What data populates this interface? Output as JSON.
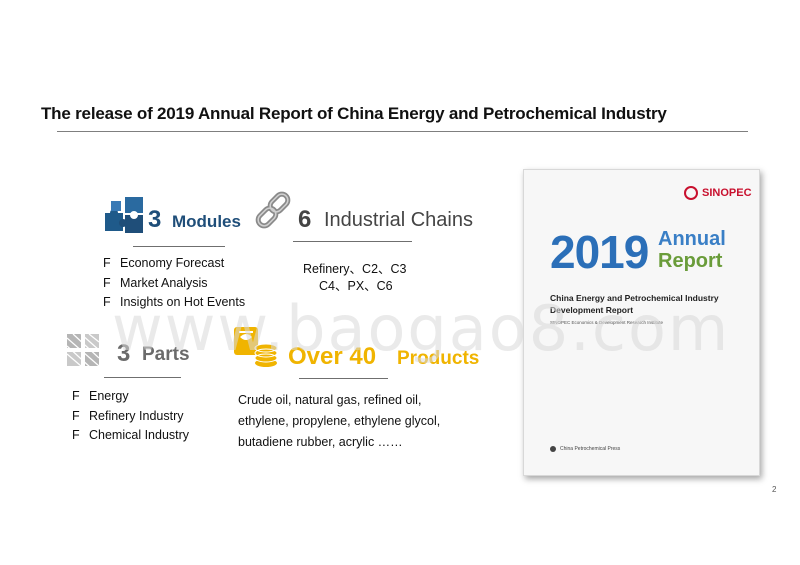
{
  "title": "The release of 2019 Annual Report of China Energy and Petrochemical Industry",
  "modules": {
    "number": "3",
    "label": "Modules",
    "items": [
      "Economy Forecast",
      "Market Analysis",
      "Insights on Hot Events"
    ],
    "bullet": "F",
    "color": "#1f4e79"
  },
  "chains": {
    "number": "6",
    "label": "Industrial Chains",
    "line1": "Refinery、C2、C3",
    "line2": "C4、PX、C6",
    "color": "#444444"
  },
  "parts": {
    "number": "3",
    "label": "Parts",
    "items": [
      "Energy",
      "Refinery Industry",
      "Chemical Industry"
    ],
    "bullet": "F",
    "color": "#6b6b6b"
  },
  "products": {
    "number": "Over 40",
    "label": "Products",
    "lines": [
      "Crude oil, natural gas, refined oil,",
      "ethylene, propylene, ethylene glycol,",
      "butadiene rubber, acrylic ……"
    ],
    "color": "#f0b400"
  },
  "book": {
    "brand": "SINOPEC",
    "year": "2019",
    "annual": "Annual",
    "report": "Report",
    "title_line1": "China Energy and Petrochemical Industry",
    "title_line2": "Development Report",
    "institute": "SINOPEC Economics & Development Research Institute",
    "publisher": "China Petrochemical Press"
  },
  "watermark": "www.baogao8.com",
  "page_number": "2",
  "icons": [
    "puzzle-icon",
    "chain-link-icon",
    "gears-icon",
    "oil-barrel-icon",
    "sinopec-logo-icon"
  ]
}
